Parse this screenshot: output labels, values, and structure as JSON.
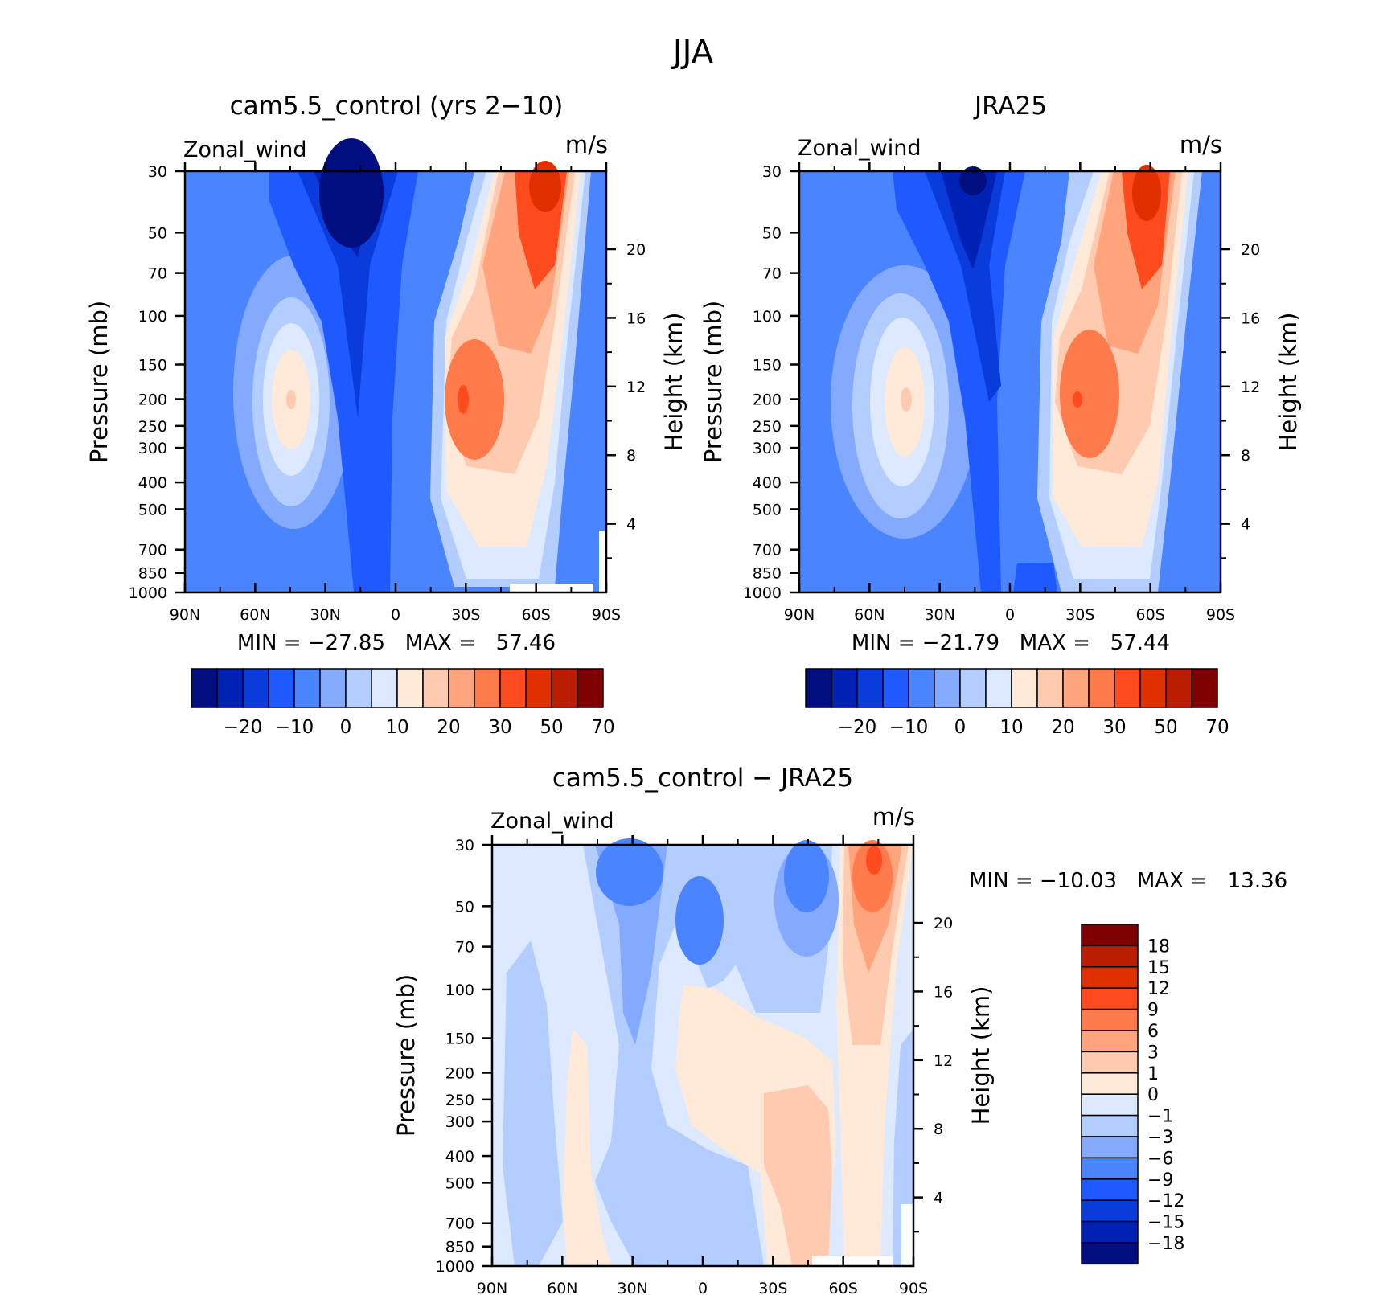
{
  "main_title": "JJA",
  "colors": {
    "full": [
      "#000e80",
      "#0022b4",
      "#0a3cdc",
      "#1e5aff",
      "#4b84ff",
      "#84aaff",
      "#b4cdff",
      "#dce9ff",
      "#ffe9d9",
      "#ffcbb0",
      "#ffa47c",
      "#ff7b4c",
      "#ff4b1e",
      "#e03000",
      "#ba1d00",
      "#7f0000"
    ],
    "diff": [
      "#000e80",
      "#0022b4",
      "#0a3cdc",
      "#1e5aff",
      "#4b84ff",
      "#84aaff",
      "#b4cdff",
      "#dce9ff",
      "#ffe9d9",
      "#ffcbb0",
      "#ffa47c",
      "#ff7b4c",
      "#ff4b1e",
      "#e03000",
      "#ba1d00",
      "#7f0000"
    ]
  },
  "chart_data": [
    {
      "type": "heatmap",
      "id": "model",
      "title": "cam5.5_control (yrs 2−10)",
      "left_label": "Zonal_wind",
      "right_label": "m/s",
      "ylabel": "Pressure (mb)",
      "y2label": "Height (km)",
      "x_ticks": [
        "90N",
        "60N",
        "30N",
        "0",
        "30S",
        "60S",
        "90S"
      ],
      "y_ticks": [
        "30",
        "50",
        "70",
        "100",
        "150",
        "200",
        "250",
        "300",
        "400",
        "500",
        "700",
        "850",
        "1000"
      ],
      "y2_ticks": [
        "20",
        "16",
        "12",
        "8",
        "4"
      ],
      "stats": "MIN = −27.85   MAX =   57.46",
      "min": -27.85,
      "max": 57.46,
      "colorbar_labels": [
        "−20",
        "−10",
        "0",
        "10",
        "20",
        "30",
        "50",
        "70"
      ],
      "features": [
        {
          "shape": "blob",
          "lat": -18,
          "p": 30,
          "value": -27.85
        },
        {
          "shape": "blob",
          "lat": -30,
          "p": 200,
          "value": 38
        },
        {
          "shape": "blob",
          "lat": -60,
          "p": 30,
          "value": 57.46
        },
        {
          "shape": "blob",
          "lat": 45,
          "p": 200,
          "value": 21
        }
      ]
    },
    {
      "type": "heatmap",
      "id": "obs",
      "title": "JRA25",
      "left_label": "Zonal_wind",
      "right_label": "m/s",
      "ylabel": "Pressure (mb)",
      "y2label": "Height (km)",
      "x_ticks": [
        "90N",
        "60N",
        "30N",
        "0",
        "30S",
        "60S",
        "90S"
      ],
      "y_ticks": [
        "30",
        "50",
        "70",
        "100",
        "150",
        "200",
        "250",
        "300",
        "400",
        "500",
        "700",
        "850",
        "1000"
      ],
      "y2_ticks": [
        "20",
        "16",
        "12",
        "8",
        "4"
      ],
      "stats": "MIN = −21.79   MAX =   57.44",
      "min": -21.79,
      "max": 57.44,
      "colorbar_labels": [
        "−20",
        "−10",
        "0",
        "10",
        "20",
        "30",
        "50",
        "70"
      ],
      "features": [
        {
          "shape": "blob",
          "lat": -15,
          "p": 30,
          "value": -21.79
        },
        {
          "shape": "blob",
          "lat": -30,
          "p": 200,
          "value": 38
        },
        {
          "shape": "blob",
          "lat": -60,
          "p": 30,
          "value": 57.44
        },
        {
          "shape": "blob",
          "lat": 45,
          "p": 200,
          "value": 21
        }
      ]
    },
    {
      "type": "heatmap",
      "id": "diff",
      "title": "cam5.5_control − JRA25",
      "left_label": "Zonal_wind",
      "right_label": "m/s",
      "ylabel": "Pressure (mb)",
      "y2label": "Height (km)",
      "x_ticks": [
        "90N",
        "60N",
        "30N",
        "0",
        "30S",
        "60S",
        "90S"
      ],
      "y_ticks": [
        "30",
        "50",
        "70",
        "100",
        "150",
        "200",
        "250",
        "300",
        "400",
        "500",
        "700",
        "850",
        "1000"
      ],
      "y2_ticks": [
        "20",
        "16",
        "12",
        "8",
        "4"
      ],
      "stats": "MIN = −10.03   MAX =   13.36",
      "min": -10.03,
      "max": 13.36,
      "colorbar_labels": [
        "18",
        "15",
        "12",
        "9",
        "6",
        "3",
        "1",
        "0",
        "−1",
        "−3",
        "−6",
        "−9",
        "−12",
        "−15",
        "−18"
      ],
      "features": [
        {
          "shape": "blob",
          "lat": -75,
          "p": 30,
          "value": 13.36
        },
        {
          "shape": "blob",
          "lat": 15,
          "p": 50,
          "value": -10.03
        },
        {
          "shape": "blob",
          "lat": 0,
          "p": 60,
          "value": -9
        },
        {
          "shape": "blob",
          "lat": -45,
          "p": 40,
          "value": -9
        },
        {
          "shape": "blob",
          "lat": -30,
          "p": 400,
          "value": 3
        }
      ]
    }
  ]
}
